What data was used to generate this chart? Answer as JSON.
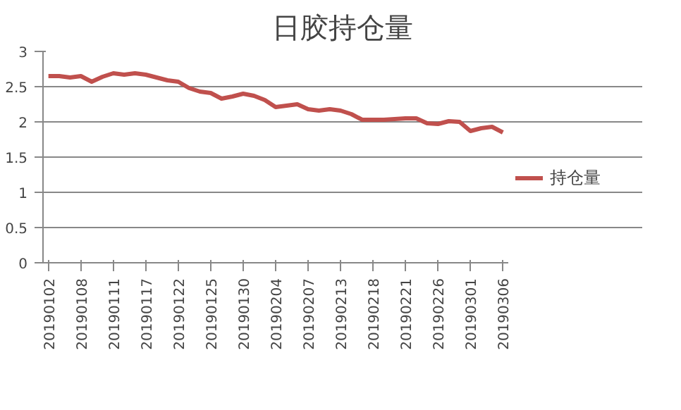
{
  "chart_data": {
    "type": "line",
    "title": "日胶持仓量",
    "categories": [
      "20190102",
      null,
      null,
      "20190108",
      null,
      null,
      "20190111",
      null,
      null,
      "20190117",
      null,
      null,
      "20190122",
      null,
      null,
      "20190125",
      null,
      null,
      "20190130",
      null,
      null,
      "20190204",
      null,
      null,
      "20190207",
      null,
      null,
      "20190213",
      null,
      null,
      "20190218",
      null,
      null,
      "20190221",
      null,
      null,
      "20190226",
      null,
      null,
      "20190301",
      null,
      null,
      "20190306"
    ],
    "series": [
      {
        "name": "持仓量",
        "color": "#c0504d",
        "values": [
          2.65,
          2.65,
          2.63,
          2.65,
          2.57,
          2.64,
          2.69,
          2.67,
          2.69,
          2.67,
          2.63,
          2.59,
          2.57,
          2.48,
          2.43,
          2.41,
          2.33,
          2.36,
          2.4,
          2.37,
          2.31,
          2.21,
          2.23,
          2.25,
          2.18,
          2.16,
          2.18,
          2.16,
          2.11,
          2.03,
          2.03,
          2.03,
          2.04,
          2.05,
          2.05,
          1.98,
          1.97,
          2.01,
          2.0,
          1.87,
          1.91,
          1.93,
          1.85
        ]
      }
    ],
    "ylim": [
      0,
      3
    ],
    "yticks": [
      0,
      0.5,
      1,
      1.5,
      2,
      2.5,
      3
    ],
    "grid": "y",
    "legend": "right"
  }
}
